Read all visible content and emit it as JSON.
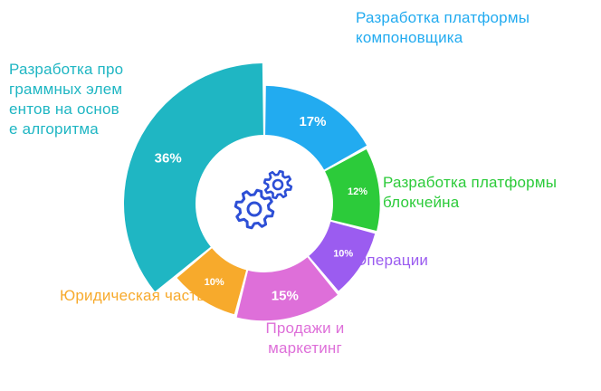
{
  "chart_data": {
    "type": "pie",
    "variant": "nightingale-donut",
    "series": [
      {
        "name": "Разработка платформы компоновщика",
        "value": 17,
        "label": "17%",
        "color": "#22abf0"
      },
      {
        "name": "Разработка платформы блокчейна",
        "value": 12,
        "label": "12%",
        "color": "#2ccb3a"
      },
      {
        "name": "Операции",
        "value": 10,
        "label": "10%",
        "color": "#9b5cf0"
      },
      {
        "name": "Продажи и маркетинг",
        "value": 15,
        "label": "15%",
        "color": "#de6fd9"
      },
      {
        "name": "Юридическая часть",
        "value": 10,
        "label": "10%",
        "color": "#f7aa2c"
      },
      {
        "name": "Разработка программных элементов на основе алгоритма",
        "value": 36,
        "label": "36%",
        "color": "#1fb6c3"
      }
    ],
    "center_icon": "gears-icon",
    "center_icon_color": "#2d4fd6"
  }
}
